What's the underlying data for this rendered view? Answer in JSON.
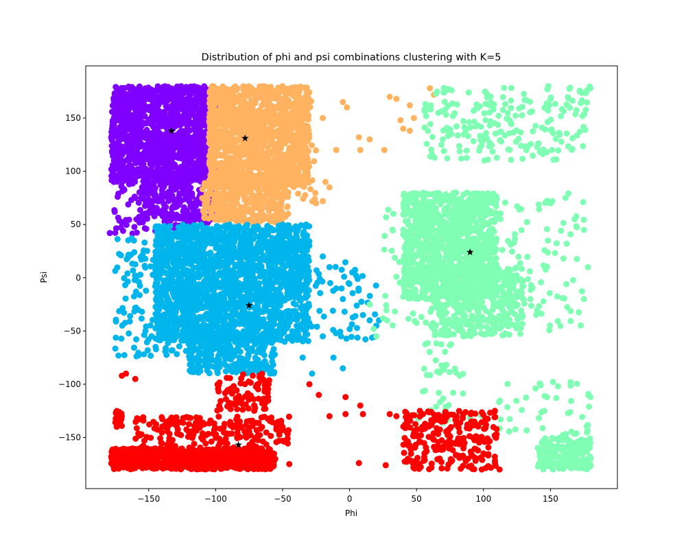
{
  "chart_data": {
    "type": "scatter",
    "title": "Distribution of phi and psi combinations clustering with K=5",
    "xlabel": "Phi",
    "ylabel": "Psi",
    "xlim": [
      -197,
      200
    ],
    "ylim": [
      -198,
      199
    ],
    "xticks": [
      -150,
      -100,
      -50,
      0,
      50,
      100,
      150
    ],
    "yticks": [
      -150,
      -100,
      -50,
      0,
      50,
      100,
      150
    ],
    "xtick_labels": [
      "−150",
      "−100",
      "−50",
      "0",
      "50",
      "100",
      "150"
    ],
    "ytick_labels": [
      "−150",
      "−100",
      "−50",
      "0",
      "50",
      "100",
      "150"
    ],
    "grid": false,
    "legend": "none",
    "clusters": [
      {
        "color": "#8000ff",
        "centroid": [
          -133,
          138
        ],
        "regions": [
          {
            "x": [
              -178,
              -100
            ],
            "y": [
              90,
              180
            ],
            "n": 1400
          },
          {
            "x": [
              -155,
              -100
            ],
            "y": [
              55,
              100
            ],
            "n": 260
          },
          {
            "x": [
              -178,
              -150
            ],
            "y": [
              40,
              90
            ],
            "n": 40
          },
          {
            "x": [
              -140,
              -105
            ],
            "y": [
              42,
              60
            ],
            "n": 60
          }
        ],
        "points": [
          [
            -179,
            42
          ],
          [
            -176,
            90
          ],
          [
            -170,
            52
          ],
          [
            -160,
            75
          ],
          [
            -145,
            44
          ]
        ]
      },
      {
        "color": "#ffb360",
        "centroid": [
          -78,
          131
        ],
        "regions": [
          {
            "x": [
              -105,
              -30
            ],
            "y": [
              85,
              180
            ],
            "n": 1300
          },
          {
            "x": [
              -110,
              -45
            ],
            "y": [
              52,
              90
            ],
            "n": 320
          },
          {
            "x": [
              -45,
              -25
            ],
            "y": [
              70,
              170
            ],
            "n": 50
          }
        ],
        "points": [
          [
            -20,
            150
          ],
          [
            -5,
            165
          ],
          [
            -2,
            160
          ],
          [
            -10,
            120
          ],
          [
            -18,
            90
          ],
          [
            -15,
            85
          ],
          [
            -20,
            72
          ],
          [
            -25,
            70
          ],
          [
            7,
            132
          ],
          [
            8,
            120
          ],
          [
            15,
            130
          ],
          [
            26,
            120
          ],
          [
            30,
            170
          ],
          [
            35,
            168
          ],
          [
            45,
            162
          ],
          [
            48,
            150
          ],
          [
            38,
            148
          ],
          [
            40,
            140
          ],
          [
            45,
            138
          ],
          [
            60,
            178
          ],
          [
            63,
            172
          ]
        ]
      },
      {
        "color": "#00b4ec",
        "centroid": [
          -75,
          -26
        ],
        "regions": [
          {
            "x": [
              -145,
              -30
            ],
            "y": [
              -60,
              50
            ],
            "n": 1900
          },
          {
            "x": [
              -120,
              -55
            ],
            "y": [
              -90,
              -50
            ],
            "n": 320
          },
          {
            "x": [
              -175,
              -120
            ],
            "y": [
              -75,
              40
            ],
            "n": 140
          },
          {
            "x": [
              -30,
              20
            ],
            "y": [
              -60,
              15
            ],
            "n": 50
          }
        ],
        "points": [
          [
            -50,
            50
          ],
          [
            -45,
            40
          ],
          [
            -35,
            35
          ],
          [
            -20,
            20
          ],
          [
            -15,
            10
          ],
          [
            -10,
            -10
          ],
          [
            -5,
            -20
          ],
          [
            2,
            5
          ],
          [
            5,
            2
          ],
          [
            10,
            -35
          ],
          [
            15,
            -40
          ],
          [
            20,
            -45
          ],
          [
            22,
            -40
          ],
          [
            -12,
            -75
          ],
          [
            -5,
            -85
          ],
          [
            -20,
            -55
          ],
          [
            -28,
            -90
          ],
          [
            -35,
            -75
          ]
        ]
      },
      {
        "color": "#80ffb4",
        "centroid": [
          90,
          24
        ],
        "regions": [
          {
            "x": [
              40,
              110
            ],
            "y": [
              -20,
              80
            ],
            "n": 1100
          },
          {
            "x": [
              60,
              130
            ],
            "y": [
              -55,
              10
            ],
            "n": 420
          },
          {
            "x": [
              25,
              175
            ],
            "y": [
              -50,
              80
            ],
            "n": 200
          },
          {
            "x": [
              55,
              180
            ],
            "y": [
              110,
              180
            ],
            "n": 220
          },
          {
            "x": [
              140,
              180
            ],
            "y": [
              -180,
              -150
            ],
            "n": 200
          },
          {
            "x": [
              110,
              180
            ],
            "y": [
              -150,
              -95
            ],
            "n": 45
          },
          {
            "x": [
              50,
              100
            ],
            "y": [
              -140,
              -100
            ],
            "n": 25
          },
          {
            "x": [
              55,
              85
            ],
            "y": [
              -95,
              -60
            ],
            "n": 25
          }
        ],
        "points": [
          [
            15,
            -25
          ],
          [
            18,
            -48
          ],
          [
            25,
            -38
          ],
          [
            20,
            -55
          ],
          [
            135,
            -20
          ],
          [
            165,
            -98
          ],
          [
            175,
            -20
          ],
          [
            178,
            10
          ],
          [
            175,
            45
          ],
          [
            168,
            55
          ],
          [
            150,
            70
          ]
        ]
      },
      {
        "color": "#ff0000",
        "centroid": [
          -83,
          -157
        ],
        "regions": [
          {
            "x": [
              -178,
              -55
            ],
            "y": [
              -180,
              -160
            ],
            "n": 800
          },
          {
            "x": [
              -160,
              -45
            ],
            "y": [
              -160,
              -130
            ],
            "n": 200
          },
          {
            "x": [
              -100,
              -60
            ],
            "y": [
              -125,
              -90
            ],
            "n": 80
          },
          {
            "x": [
              40,
              110
            ],
            "y": [
              -180,
              -125
            ],
            "n": 250
          },
          {
            "x": [
              -175,
              -170
            ],
            "y": [
              -140,
              -125
            ],
            "n": 25
          }
        ],
        "points": [
          [
            -170,
            -92
          ],
          [
            -167,
            -90
          ],
          [
            -160,
            -95
          ],
          [
            -30,
            -100
          ],
          [
            -23,
            -110
          ],
          [
            -15,
            -130
          ],
          [
            -3,
            -112
          ],
          [
            -3,
            -128
          ],
          [
            8,
            -120
          ],
          [
            10,
            -128
          ],
          [
            7,
            -174
          ],
          [
            27,
            -176
          ],
          [
            35,
            -130
          ],
          [
            30,
            -128
          ],
          [
            -45,
            -175
          ],
          [
            112,
            -180
          ],
          [
            100,
            -165
          ]
        ]
      }
    ]
  }
}
